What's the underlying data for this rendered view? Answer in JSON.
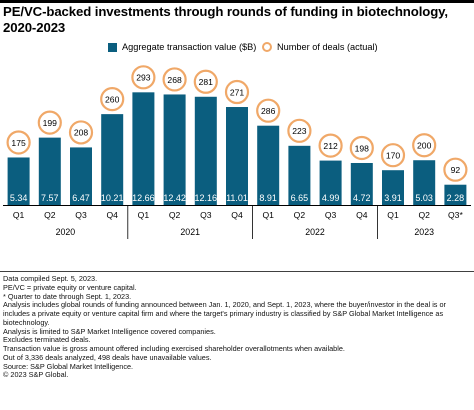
{
  "title": "PE/VC-backed investments through rounds of funding in biotechnology, 2020-2023",
  "colors": {
    "bar": "#0b5e7f",
    "circle_stroke": "#f0a868",
    "bar_label": "#ffffff",
    "axis": "#000000"
  },
  "chart_data": {
    "type": "bar",
    "categories": [
      "Q1",
      "Q2",
      "Q3",
      "Q4",
      "Q1",
      "Q2",
      "Q3",
      "Q4",
      "Q1",
      "Q2",
      "Q3",
      "Q4",
      "Q1",
      "Q2",
      "Q3*"
    ],
    "year_groups": [
      {
        "label": "2020",
        "start": 0,
        "end": 3
      },
      {
        "label": "2021",
        "start": 4,
        "end": 7
      },
      {
        "label": "2022",
        "start": 8,
        "end": 11
      },
      {
        "label": "2023",
        "start": 12,
        "end": 14
      }
    ],
    "series": [
      {
        "name": "Aggregate transaction value ($B)",
        "type": "bar",
        "values": [
          5.34,
          7.57,
          6.47,
          10.21,
          12.66,
          12.42,
          12.16,
          11.01,
          8.91,
          6.65,
          4.99,
          4.72,
          3.91,
          5.03,
          2.28
        ]
      },
      {
        "name": "Number of deals (actual)",
        "type": "circle",
        "values": [
          175,
          199,
          208,
          260,
          293,
          268,
          281,
          271,
          286,
          223,
          212,
          198,
          170,
          200,
          92
        ]
      }
    ],
    "ylim": [
      0,
      13
    ],
    "grid": false,
    "legend_position": "top"
  },
  "notes": [
    "Data compiled Sept. 5, 2023.",
    "PE/VC = private equity or venture capital.",
    "* Quarter to date through Sept. 1, 2023.",
    "Analysis includes global rounds of funding announced between Jan. 1, 2020, and Sept. 1, 2023, where the buyer/investor in the deal is or includes a private equity or venture capital firm and where the target's primary industry is classified by S&P Global Market Intelligence as biotechnology.",
    "Analysis is limited to S&P Market Intelligence covered companies.",
    "Excludes terminated deals.",
    "Transaction value is gross amount offered including exercised shareholder overallotments when available.",
    "Out of 3,336 deals analyzed, 498 deals have unavailable values.",
    "Source: S&P Global Market Intelligence.",
    "© 2023 S&P Global."
  ]
}
